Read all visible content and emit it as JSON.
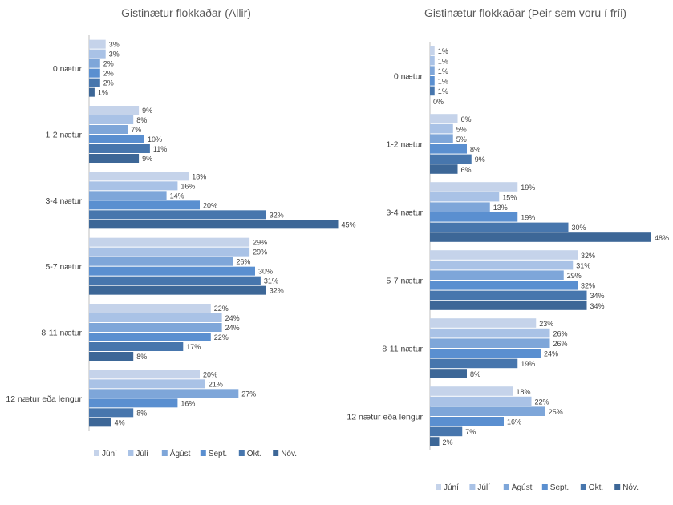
{
  "colors": [
    "#c5d3ea",
    "#a9c2e6",
    "#7ea6d9",
    "#5a8fd0",
    "#4776ad",
    "#3d6797"
  ],
  "chart_data": [
    {
      "type": "bar",
      "orientation": "horizontal",
      "title": "Gistinætur flokkaðar (Allir)",
      "categories": [
        "0 nætur",
        "1-2 nætur",
        "3-4 nætur",
        "5-7 nætur",
        "8-11 nætur",
        "12 nætur eða lengur"
      ],
      "series": [
        {
          "name": "Júní",
          "values": [
            3,
            9,
            18,
            29,
            22,
            20
          ]
        },
        {
          "name": "Júlí",
          "values": [
            3,
            8,
            16,
            29,
            24,
            21
          ]
        },
        {
          "name": "Ágúst",
          "values": [
            2,
            7,
            14,
            26,
            24,
            27
          ]
        },
        {
          "name": "Sept.",
          "values": [
            2,
            10,
            20,
            30,
            22,
            16
          ]
        },
        {
          "name": "Okt.",
          "values": [
            2,
            11,
            32,
            31,
            17,
            8
          ]
        },
        {
          "name": "Nóv.",
          "values": [
            1,
            9,
            45,
            32,
            8,
            4
          ]
        }
      ],
      "value_suffix": "%",
      "legend": "bottom"
    },
    {
      "type": "bar",
      "orientation": "horizontal",
      "title": "Gistinætur flokkaðar (Þeir sem voru í fríi)",
      "categories": [
        "0 nætur",
        "1-2 nætur",
        "3-4 nætur",
        "5-7 nætur",
        "8-11 nætur",
        "12 nætur eða lengur"
      ],
      "series": [
        {
          "name": "Júní",
          "values": [
            1,
            6,
            19,
            32,
            23,
            18
          ]
        },
        {
          "name": "Júlí",
          "values": [
            1,
            5,
            15,
            31,
            26,
            22
          ]
        },
        {
          "name": "Ágúst",
          "values": [
            1,
            5,
            13,
            29,
            26,
            25
          ]
        },
        {
          "name": "Sept.",
          "values": [
            1,
            8,
            19,
            32,
            24,
            16
          ]
        },
        {
          "name": "Okt.",
          "values": [
            1,
            9,
            30,
            34,
            19,
            7
          ]
        },
        {
          "name": "Nóv.",
          "values": [
            0,
            6,
            48,
            34,
            8,
            2
          ]
        }
      ],
      "value_suffix": "%",
      "legend": "bottom"
    }
  ]
}
